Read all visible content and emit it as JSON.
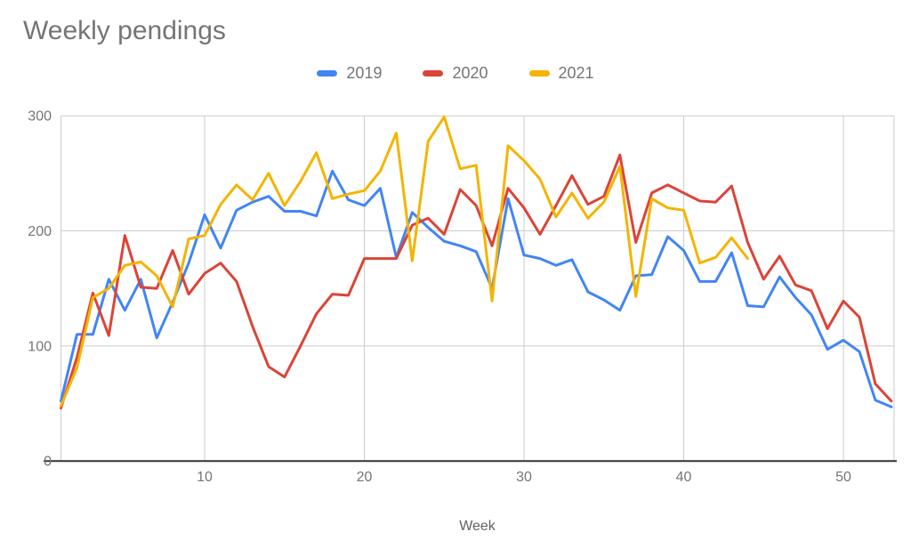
{
  "title": "Weekly pendings",
  "x_axis": {
    "title": "Week",
    "ticks": [
      10,
      20,
      30,
      40,
      50
    ]
  },
  "y_axis": {
    "ticks": [
      0,
      100,
      200,
      300
    ]
  },
  "colors": {
    "series_2019": "#4285F4",
    "series_2020": "#DB4437",
    "series_2021": "#F4B400",
    "gridline": "#cccccc",
    "axis_line": "#333333",
    "title_text": "#757575",
    "tick_text": "#757575",
    "axis_title_text": "#616161"
  },
  "chart_data": {
    "type": "line",
    "title": "Weekly pendings",
    "xlabel": "Week",
    "ylabel": "",
    "xlim": [
      1,
      53
    ],
    "ylim": [
      0,
      300
    ],
    "grid": true,
    "legend_position": "top",
    "x": [
      1,
      2,
      3,
      4,
      5,
      6,
      7,
      8,
      9,
      10,
      11,
      12,
      13,
      14,
      15,
      16,
      17,
      18,
      19,
      20,
      21,
      22,
      23,
      24,
      25,
      26,
      27,
      28,
      29,
      30,
      31,
      32,
      33,
      34,
      35,
      36,
      37,
      38,
      39,
      40,
      41,
      42,
      43,
      44,
      45,
      46,
      47,
      48,
      49,
      50,
      51,
      52,
      53
    ],
    "series": [
      {
        "name": "2019",
        "color": "#4285F4",
        "values": [
          52,
          110,
          110,
          158,
          131,
          158,
          107,
          138,
          172,
          214,
          185,
          218,
          225,
          230,
          217,
          217,
          213,
          252,
          227,
          222,
          237,
          177,
          216,
          203,
          191,
          187,
          182,
          150,
          228,
          179,
          176,
          170,
          175,
          147,
          140,
          131,
          161,
          162,
          195,
          183,
          156,
          156,
          181,
          135,
          134,
          160,
          142,
          127,
          97,
          105,
          95,
          53,
          47
        ]
      },
      {
        "name": "2020",
        "color": "#DB4437",
        "values": [
          46,
          90,
          146,
          109,
          196,
          151,
          150,
          183,
          145,
          163,
          172,
          156,
          117,
          82,
          73,
          100,
          128,
          145,
          144,
          176,
          176,
          176,
          205,
          211,
          197,
          236,
          222,
          187,
          237,
          220,
          197,
          222,
          248,
          223,
          230,
          266,
          190,
          233,
          240,
          233,
          226,
          225,
          239,
          190,
          158,
          178,
          153,
          148,
          115,
          139,
          125,
          67,
          52
        ]
      },
      {
        "name": "2021",
        "color": "#F4B400",
        "values": [
          48,
          81,
          142,
          150,
          170,
          173,
          161,
          134,
          193,
          196,
          223,
          240,
          227,
          250,
          222,
          243,
          268,
          228,
          232,
          235,
          252,
          285,
          174,
          278,
          299,
          254,
          257,
          139,
          274,
          261,
          245,
          212,
          233,
          211,
          225,
          256,
          143,
          228,
          220,
          218,
          172,
          177,
          194,
          176
        ]
      }
    ]
  }
}
